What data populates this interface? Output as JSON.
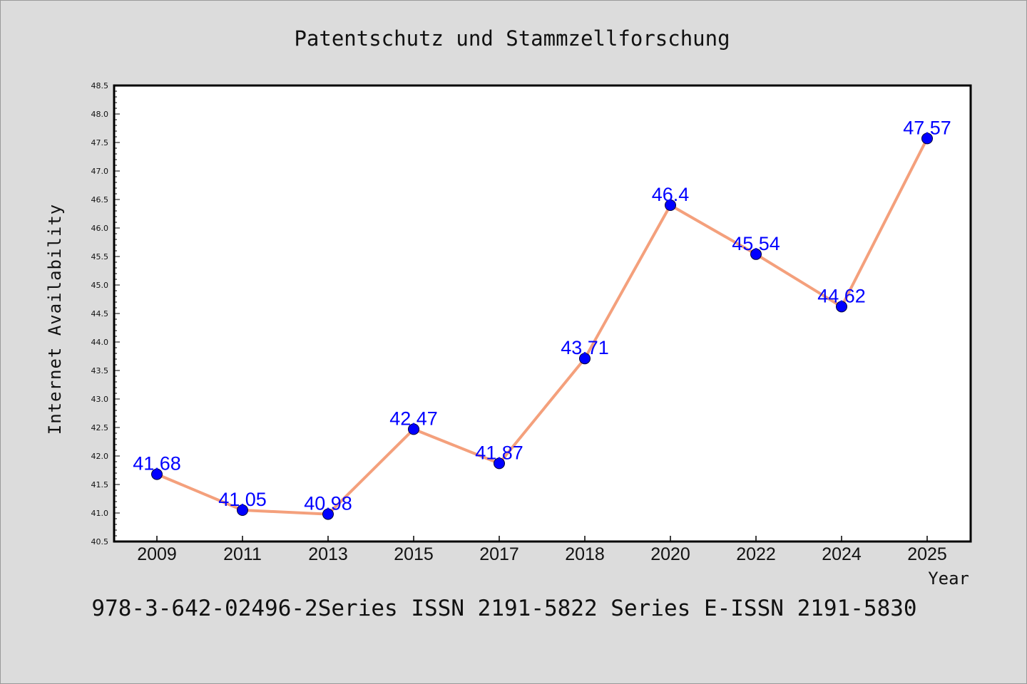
{
  "chart_data": {
    "type": "line",
    "title": "Patentschutz und Stammzellforschung",
    "xlabel": "Year",
    "ylabel": "Internet Availability",
    "footer": "978-3-642-02496-2Series ISSN 2191-5822 Series E-ISSN 2191-5830",
    "categories": [
      "2009",
      "2011",
      "2013",
      "2015",
      "2017",
      "2018",
      "2020",
      "2022",
      "2024",
      "2025"
    ],
    "series": [
      {
        "values": [
          41.68,
          41.05,
          40.98,
          42.47,
          41.87,
          43.71,
          46.4,
          45.54,
          44.62,
          47.57
        ],
        "labels": [
          "41.68",
          "41.05",
          "40.98",
          "42.47",
          "41.87",
          "43.71",
          "46.4",
          "45.54",
          "44.62",
          "47.57"
        ],
        "line_color": "#f4a07c",
        "marker_color": "#0000ff"
      }
    ],
    "ylim": [
      40.5,
      48.5
    ],
    "yticks": [
      "40.5",
      "41.0",
      "41.5",
      "42.0",
      "42.5",
      "43.0",
      "43.5",
      "44.0",
      "44.5",
      "45.0",
      "45.5",
      "46.0",
      "46.5",
      "47.0",
      "47.5",
      "48.0",
      "48.5"
    ],
    "grid": false,
    "legend": "none",
    "background": "#dcdcdc",
    "plot_background": "#ffffff"
  }
}
